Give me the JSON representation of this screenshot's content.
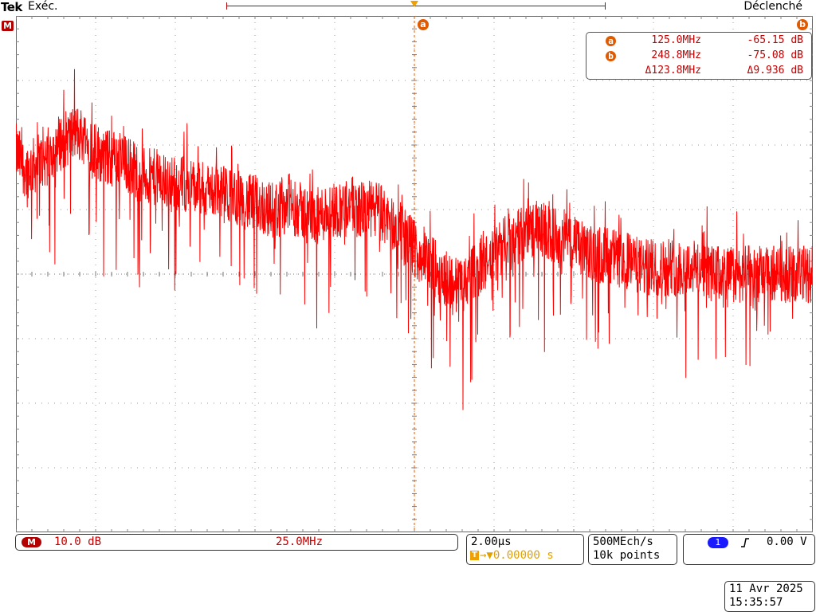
{
  "header": {
    "brand": "Tek",
    "run_state": "Exéc.",
    "trigger_state": "Déclenché"
  },
  "cursors": {
    "a_label": "a",
    "b_label": "b",
    "math_label": "M",
    "readout": {
      "a": {
        "badge": "a",
        "freq": "125.0MHz",
        "value": "-65.15 dB"
      },
      "b": {
        "badge": "b",
        "freq": "248.8MHz",
        "value": "-75.08 dB"
      },
      "delta": {
        "freq": "Δ123.8MHz",
        "value": "Δ9.936 dB"
      }
    }
  },
  "math_panel": {
    "badge": "M",
    "scale": "10.0 dB",
    "center": "25.0MHz"
  },
  "timebase": {
    "scale": "2.00µs",
    "trigger_pos_icon": "T",
    "trigger_pos": "→▼0.00000 s"
  },
  "acquisition": {
    "rate": "500MEch/s",
    "points": "10k points"
  },
  "trigger": {
    "channel": "1",
    "slope_icon": "rising-edge-icon",
    "level": "0.00 V"
  },
  "datetime": {
    "date": "11 Avr  2025",
    "time": "15:35:57"
  },
  "colors": {
    "trace": "#ff0000",
    "cursor_text": "#c00000",
    "cursor_marker": "#e05a00",
    "trigger_text": "#e0a000",
    "channel1": "#1a1aff",
    "math": "#b30000"
  },
  "chart_data": {
    "type": "line",
    "title": "",
    "xlabel": "",
    "ylabel": "",
    "grid": true,
    "x_divisions": 10,
    "y_divisions": 8,
    "cursor_a_freq_mhz": 125.0,
    "cursor_b_freq_mhz": 248.8,
    "series": [
      {
        "values": [
          -44,
          -47,
          -46,
          -45,
          -43,
          -42,
          -41,
          -42,
          -44,
          -45,
          -45,
          -46,
          -47,
          -48,
          -48,
          -49,
          -49,
          -49,
          -50,
          -50,
          -50,
          -51,
          -51,
          -52,
          -52,
          -53,
          -53,
          -52,
          -53,
          -54,
          -54,
          -53,
          -53,
          -52,
          -53,
          -53,
          -53,
          -55,
          -56,
          -58,
          -60,
          -61,
          -63,
          -64,
          -65,
          -63,
          -62,
          -61,
          -59,
          -58,
          -57,
          -56,
          -56,
          -57,
          -57,
          -58,
          -59,
          -60,
          -60,
          -60,
          -61,
          -61,
          -62,
          -62,
          -62,
          -62,
          -62,
          -62,
          -62,
          -63,
          -63,
          -63,
          -63,
          -63,
          -63,
          -63,
          -63,
          -63,
          -63,
          -63
        ]
      }
    ]
  }
}
